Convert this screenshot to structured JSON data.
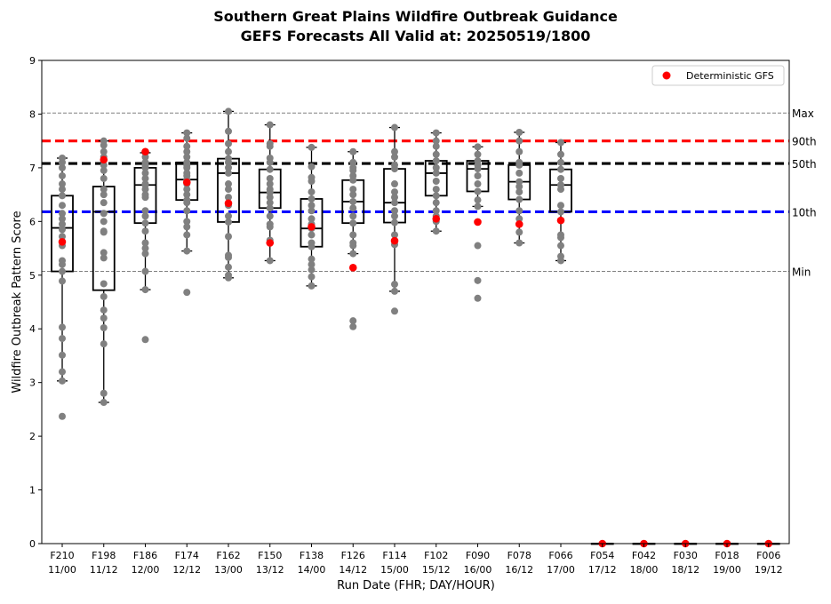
{
  "chart_data": {
    "type": "box",
    "title": "Southern Great Plains Wildfire Outbreak Guidance",
    "subtitle": "GEFS Forecasts All Valid at: 20250519/1800",
    "xlabel": "Run Date (FHR; DAY/HOUR)",
    "ylabel": "Wildfire Outbreak Pattern Score",
    "ylim": [
      0,
      9
    ],
    "yticks": [
      "0",
      "1",
      "2",
      "3",
      "4",
      "5",
      "6",
      "7",
      "8",
      "9"
    ],
    "legend": {
      "position": "top-right",
      "entries": [
        {
          "label": "Deterministic GFS",
          "color": "#ff0000"
        }
      ]
    },
    "reference_lines": [
      {
        "label": "Max",
        "value": 8.02,
        "color": "#808080",
        "style": "thin-dashed"
      },
      {
        "label": "90th",
        "value": 7.5,
        "color": "#ff0000",
        "style": "thick-dashed"
      },
      {
        "label": "50th",
        "value": 7.08,
        "color": "#000000",
        "style": "thick-dashed"
      },
      {
        "label": "10th",
        "value": 6.18,
        "color": "#0000ff",
        "style": "thick-dashed"
      },
      {
        "label": "Min",
        "value": 5.07,
        "color": "#808080",
        "style": "thin-dashed"
      }
    ],
    "categories": [
      {
        "fhr": "F210",
        "day": "11/00",
        "box": [
          3.03,
          5.07,
          5.88,
          6.48,
          7.18
        ],
        "gfs": 5.62,
        "members": [
          2.37,
          3.03,
          3.2,
          3.51,
          3.82,
          4.03,
          4.89,
          5.07,
          5.2,
          5.27,
          5.55,
          5.72,
          5.85,
          5.95,
          6.05,
          6.15,
          6.3,
          6.48,
          6.6,
          6.7,
          6.85,
          7.0,
          7.1,
          7.18
        ]
      },
      {
        "fhr": "F198",
        "day": "11/12",
        "box": [
          2.63,
          4.72,
          6.18,
          6.65,
          7.5
        ],
        "gfs": 7.15,
        "members": [
          2.63,
          2.8,
          3.72,
          4.02,
          4.2,
          4.35,
          4.6,
          4.84,
          5.32,
          5.42,
          5.8,
          5.82,
          6.0,
          6.15,
          6.35,
          6.5,
          6.6,
          6.8,
          6.95,
          7.05,
          7.2,
          7.3,
          7.42,
          7.5
        ]
      },
      {
        "fhr": "F186",
        "day": "12/00",
        "box": [
          4.73,
          5.97,
          6.68,
          7.0,
          7.28
        ],
        "gfs": 7.3,
        "members": [
          3.8,
          4.73,
          5.07,
          5.4,
          5.5,
          5.6,
          5.82,
          5.97,
          6.1,
          6.2,
          6.45,
          6.5,
          6.6,
          6.68,
          6.7,
          6.8,
          6.9,
          7.0,
          7.05,
          7.1,
          7.2,
          7.28
        ]
      },
      {
        "fhr": "F174",
        "day": "12/12",
        "box": [
          5.45,
          6.4,
          6.78,
          7.1,
          7.65
        ],
        "gfs": 6.73,
        "members": [
          4.68,
          5.45,
          5.75,
          5.9,
          6.0,
          6.2,
          6.35,
          6.4,
          6.5,
          6.6,
          6.7,
          6.78,
          6.85,
          6.9,
          7.0,
          7.05,
          7.1,
          7.2,
          7.3,
          7.4,
          7.55,
          7.65
        ]
      },
      {
        "fhr": "F162",
        "day": "13/00",
        "box": [
          4.95,
          5.99,
          6.9,
          7.17,
          8.05
        ],
        "gfs": 6.34,
        "members": [
          4.95,
          5.0,
          5.15,
          5.33,
          5.37,
          5.72,
          5.99,
          6.1,
          6.3,
          6.45,
          6.6,
          6.7,
          6.9,
          7.0,
          7.1,
          7.17,
          7.3,
          7.45,
          7.68,
          8.05
        ]
      },
      {
        "fhr": "F150",
        "day": "13/12",
        "box": [
          5.27,
          6.25,
          6.54,
          6.97,
          7.8
        ],
        "gfs": 5.6,
        "members": [
          5.27,
          5.65,
          5.9,
          5.95,
          6.1,
          6.25,
          6.35,
          6.45,
          6.54,
          6.6,
          6.7,
          6.8,
          6.97,
          7.1,
          7.18,
          7.4,
          7.45,
          7.8
        ]
      },
      {
        "fhr": "F138",
        "day": "14/00",
        "box": [
          4.8,
          5.53,
          5.87,
          6.42,
          7.38
        ],
        "gfs": 5.9,
        "members": [
          4.8,
          4.97,
          5.1,
          5.2,
          5.3,
          5.53,
          5.6,
          5.75,
          5.87,
          5.95,
          6.05,
          6.2,
          6.3,
          6.42,
          6.55,
          6.75,
          6.82,
          7.02,
          7.38
        ]
      },
      {
        "fhr": "F126",
        "day": "14/12",
        "box": [
          5.4,
          5.97,
          6.37,
          6.77,
          7.3
        ],
        "gfs": 5.14,
        "members": [
          4.04,
          4.15,
          5.4,
          5.55,
          5.6,
          5.75,
          5.97,
          6.1,
          6.25,
          6.37,
          6.5,
          6.6,
          6.77,
          6.85,
          6.95,
          7.0,
          7.1,
          7.3
        ]
      },
      {
        "fhr": "F114",
        "day": "15/00",
        "box": [
          4.7,
          5.98,
          6.35,
          6.98,
          7.75
        ],
        "gfs": 5.64,
        "members": [
          4.33,
          4.7,
          4.83,
          5.57,
          5.75,
          5.98,
          6.1,
          6.2,
          6.35,
          6.45,
          6.55,
          6.7,
          6.98,
          7.05,
          7.2,
          7.3,
          7.75
        ]
      },
      {
        "fhr": "F102",
        "day": "15/12",
        "box": [
          5.82,
          6.48,
          6.9,
          7.13,
          7.65
        ],
        "gfs": 6.05,
        "members": [
          5.82,
          6.0,
          6.1,
          6.2,
          6.35,
          6.48,
          6.6,
          6.75,
          6.9,
          7.0,
          7.13,
          7.25,
          7.4,
          7.5,
          7.65
        ]
      },
      {
        "fhr": "F090",
        "day": "16/00",
        "box": [
          6.28,
          6.56,
          6.98,
          7.13,
          7.39
        ],
        "gfs": 5.99,
        "members": [
          4.57,
          4.9,
          5.55,
          6.28,
          6.4,
          6.56,
          6.7,
          6.85,
          6.98,
          7.05,
          7.13,
          7.25,
          7.39
        ]
      },
      {
        "fhr": "F078",
        "day": "16/12",
        "box": [
          5.6,
          6.41,
          6.74,
          7.05,
          7.66
        ],
        "gfs": 5.95,
        "members": [
          5.6,
          5.8,
          6.05,
          6.2,
          6.41,
          6.55,
          6.65,
          6.74,
          6.9,
          7.05,
          7.1,
          7.3,
          7.5,
          7.66
        ]
      },
      {
        "fhr": "F066",
        "day": "17/00",
        "box": [
          5.27,
          6.18,
          6.68,
          6.97,
          7.47
        ],
        "gfs": 6.02,
        "members": [
          5.27,
          5.35,
          5.55,
          5.7,
          5.75,
          6.18,
          6.3,
          6.6,
          6.68,
          6.8,
          6.97,
          7.1,
          7.25,
          7.47
        ]
      },
      {
        "fhr": "F054",
        "day": "17/12",
        "box": [
          0,
          0,
          0,
          0,
          0
        ],
        "gfs": 0,
        "members": [
          0
        ]
      },
      {
        "fhr": "F042",
        "day": "18/00",
        "box": [
          0,
          0,
          0,
          0,
          0
        ],
        "gfs": 0,
        "members": [
          0
        ]
      },
      {
        "fhr": "F030",
        "day": "18/12",
        "box": [
          0,
          0,
          0,
          0,
          0
        ],
        "gfs": 0,
        "members": [
          0
        ]
      },
      {
        "fhr": "F018",
        "day": "19/00",
        "box": [
          0,
          0,
          0,
          0,
          0
        ],
        "gfs": 0,
        "members": [
          0
        ]
      },
      {
        "fhr": "F006",
        "day": "19/12",
        "box": [
          0,
          0,
          0,
          0,
          0
        ],
        "gfs": 0,
        "members": [
          0
        ]
      }
    ],
    "colors": {
      "members": "#808080",
      "gfs": "#ff0000",
      "box": "#000000"
    }
  }
}
